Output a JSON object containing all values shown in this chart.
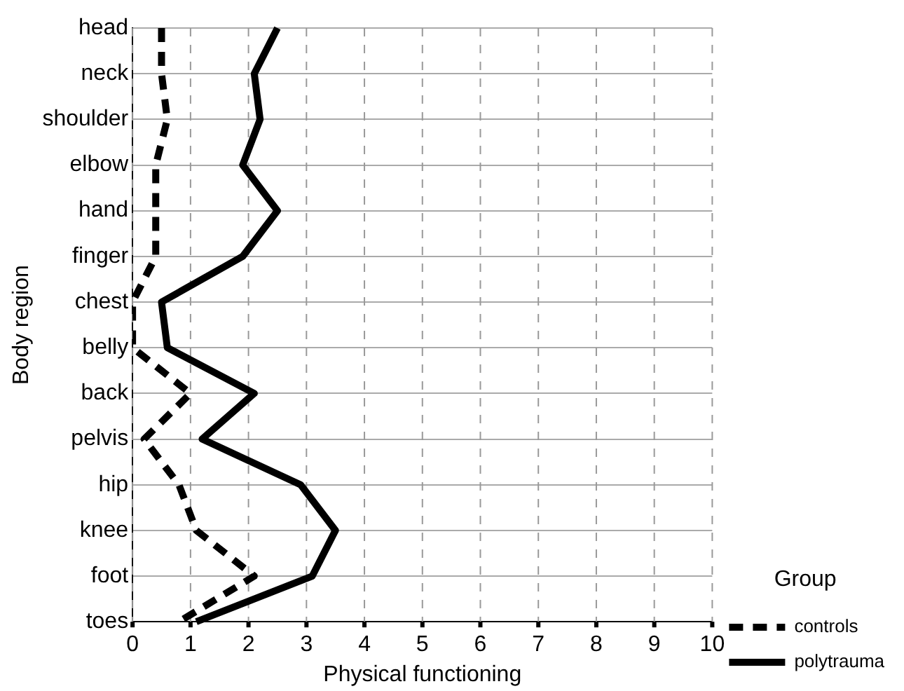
{
  "chart_data": {
    "type": "line",
    "orientation": "horizontal",
    "xlabel": "Physical functioning",
    "ylabel": "Body region",
    "legend_title": "Group",
    "legend": "right",
    "grid": true,
    "marker": "none",
    "categories": [
      "head",
      "neck",
      "shoulder",
      "elbow",
      "hand",
      "finger",
      "chest",
      "belly",
      "back",
      "pelvis",
      "hip",
      "knee",
      "foot",
      "toes"
    ],
    "xlim": [
      0,
      10
    ],
    "xticks": [
      0,
      1,
      2,
      3,
      4,
      5,
      6,
      7,
      8,
      9,
      10
    ],
    "series": [
      {
        "name": "controls",
        "color": "#000000",
        "line_style": "dashed",
        "values": [
          0.5,
          0.5,
          0.6,
          0.4,
          0.4,
          0.4,
          0,
          0,
          1.0,
          0.2,
          0.8,
          1.1,
          2.1,
          0.8
        ]
      },
      {
        "name": "polytrauma",
        "color": "#000000",
        "line_style": "solid",
        "values": [
          2.5,
          2.1,
          2.2,
          1.9,
          2.5,
          1.9,
          0.5,
          0.6,
          2.1,
          1.2,
          2.9,
          3.5,
          3.1,
          1.1
        ]
      }
    ]
  }
}
